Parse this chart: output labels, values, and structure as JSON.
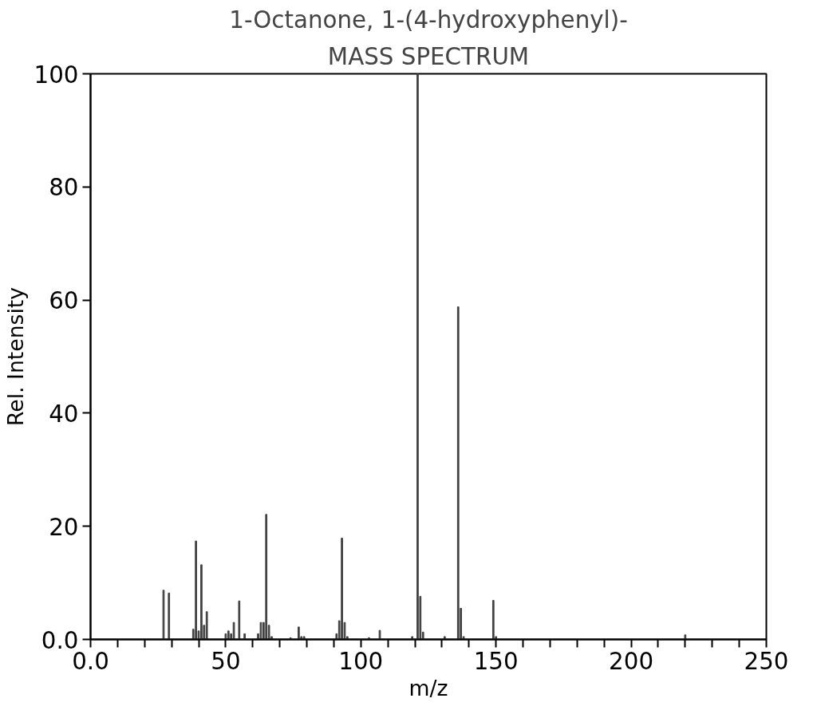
{
  "chart_data": {
    "type": "bar",
    "title": "1-Octanone, 1-(4-hydroxyphenyl)-",
    "subtitle": "MASS SPECTRUM",
    "xlabel": "m/z",
    "ylabel": "Rel. Intensity",
    "x": [
      27,
      29,
      38,
      39,
      40,
      41,
      42,
      43,
      50,
      51,
      52,
      53,
      55,
      57,
      62,
      63,
      64,
      65,
      66,
      67,
      74,
      77,
      78,
      79,
      91,
      92,
      93,
      94,
      95,
      103,
      107,
      119,
      121,
      122,
      123,
      131,
      136,
      137,
      138,
      149,
      150,
      220
    ],
    "values": [
      8.7,
      8.2,
      1.8,
      17.4,
      1.5,
      13.2,
      2.5,
      4.9,
      1,
      1.5,
      1,
      3,
      6.8,
      1,
      1,
      3,
      3,
      22.1,
      2.5,
      0.5,
      0.3,
      2.2,
      0.5,
      0.5,
      1,
      3.3,
      17.9,
      3,
      0.5,
      0.3,
      1.6,
      0.5,
      100,
      7.6,
      1.3,
      0.5,
      58.8,
      5.5,
      0.5,
      6.9,
      0.5,
      0.8
    ],
    "color": "#404040",
    "xlim": [
      0,
      250
    ],
    "ylim": [
      0,
      100
    ],
    "xticks": [
      {
        "value": 0,
        "label": "0.0"
      },
      {
        "value": 10,
        "label": null
      },
      {
        "value": 20,
        "label": null
      },
      {
        "value": 30,
        "label": null
      },
      {
        "value": 40,
        "label": null
      },
      50,
      {
        "value": 60,
        "label": null
      },
      {
        "value": 70,
        "label": null
      },
      {
        "value": 80,
        "label": null
      },
      {
        "value": 90,
        "label": null
      },
      100,
      {
        "value": 110,
        "label": null
      },
      {
        "value": 120,
        "label": null
      },
      {
        "value": 130,
        "label": null
      },
      {
        "value": 140,
        "label": null
      },
      150,
      {
        "value": 160,
        "label": null
      },
      {
        "value": 170,
        "label": null
      },
      {
        "value": 180,
        "label": null
      },
      {
        "value": 190,
        "label": null
      },
      200,
      {
        "value": 210,
        "label": null
      },
      {
        "value": 220,
        "label": null
      },
      {
        "value": 230,
        "label": null
      },
      {
        "value": 240,
        "label": null
      },
      250
    ],
    "yticks": [
      {
        "value": 0,
        "label": "0.0"
      },
      20,
      40,
      60,
      80,
      100
    ],
    "grid": false
  }
}
